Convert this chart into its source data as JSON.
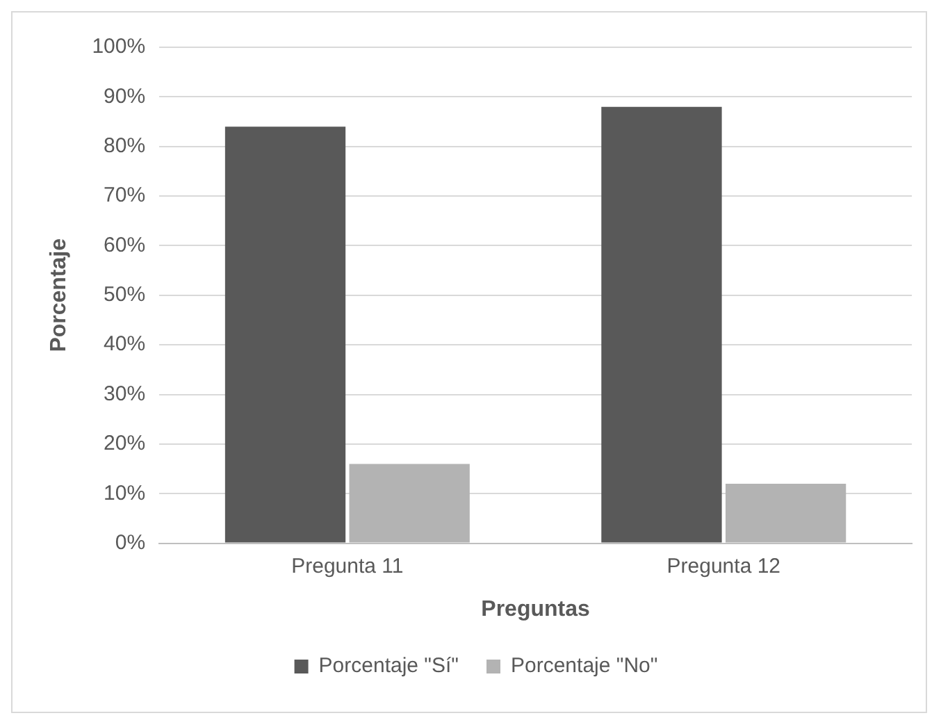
{
  "chart_data": {
    "type": "bar",
    "xlabel": "Preguntas",
    "ylabel": "Porcentaje",
    "categories": [
      "Pregunta 11",
      "Pregunta 12"
    ],
    "series": [
      {
        "name": "Porcentaje \"Sí\"",
        "color": "#595959",
        "values": [
          84,
          88
        ]
      },
      {
        "name": "Porcentaje \"No\"",
        "color": "#b3b3b3",
        "values": [
          16,
          12
        ]
      }
    ],
    "ylim": [
      0,
      100
    ],
    "yticks": [
      {
        "value": 0,
        "label": "0%"
      },
      {
        "value": 10,
        "label": "10%"
      },
      {
        "value": 20,
        "label": "20%"
      },
      {
        "value": 30,
        "label": "30%"
      },
      {
        "value": 40,
        "label": "40%"
      },
      {
        "value": 50,
        "label": "50%"
      },
      {
        "value": 60,
        "label": "60%"
      },
      {
        "value": 70,
        "label": "70%"
      },
      {
        "value": 80,
        "label": "80%"
      },
      {
        "value": 90,
        "label": "90%"
      },
      {
        "value": 100,
        "label": "100%"
      }
    ],
    "grid": "y",
    "legend": "bottom"
  }
}
